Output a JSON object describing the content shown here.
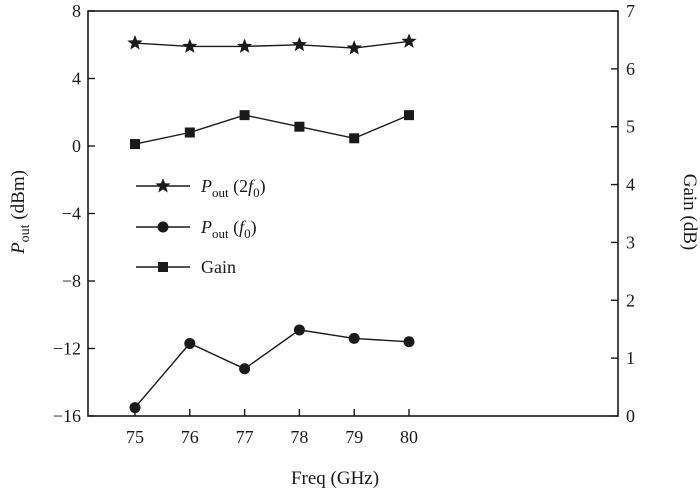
{
  "chart_data": {
    "type": "line",
    "xlabel": "Freq (GHz)",
    "ylabel_left": {
      "main": "P",
      "sub": "out",
      "suffix": " (dBm)"
    },
    "ylabel_right": "Gain (dB)",
    "x": [
      75,
      76,
      77,
      78,
      79,
      80
    ],
    "xticks": [
      "75",
      "76",
      "77",
      "78",
      "79",
      "80"
    ],
    "ylim_left": [
      -16,
      8
    ],
    "yticks_left": [
      "8",
      "4",
      "0",
      "−4",
      "−8",
      "−12",
      "−16"
    ],
    "ylim_right": [
      0,
      7
    ],
    "yticks_right": [
      "7",
      "6",
      "5",
      "4",
      "3",
      "2",
      "1",
      "0"
    ],
    "grid": false,
    "legend_placement": "center-left",
    "series": [
      {
        "name": "Pout (2f0)",
        "axis": "left",
        "marker": "star",
        "values": [
          6.1,
          5.9,
          5.9,
          6.0,
          5.8,
          6.2
        ],
        "label": {
          "main": "P",
          "sub": "out",
          "mid": " (2",
          "var": "f",
          "varsub": "0",
          "tail": ")"
        }
      },
      {
        "name": "Pout (f0)",
        "axis": "left",
        "marker": "circle",
        "values": [
          -15.5,
          -11.7,
          -13.2,
          -10.9,
          -11.4,
          -11.6
        ],
        "label": {
          "main": "P",
          "sub": "out",
          "mid": " (",
          "var": "f",
          "varsub": "0",
          "tail": ")"
        }
      },
      {
        "name": "Gain",
        "axis": "right",
        "marker": "square",
        "values": [
          4.7,
          4.9,
          5.2,
          5.0,
          4.8,
          5.2
        ],
        "label": {
          "text": "Gain"
        }
      }
    ],
    "colors": {
      "line": "#1a1a1a",
      "marker": "#1a1a1a"
    }
  }
}
